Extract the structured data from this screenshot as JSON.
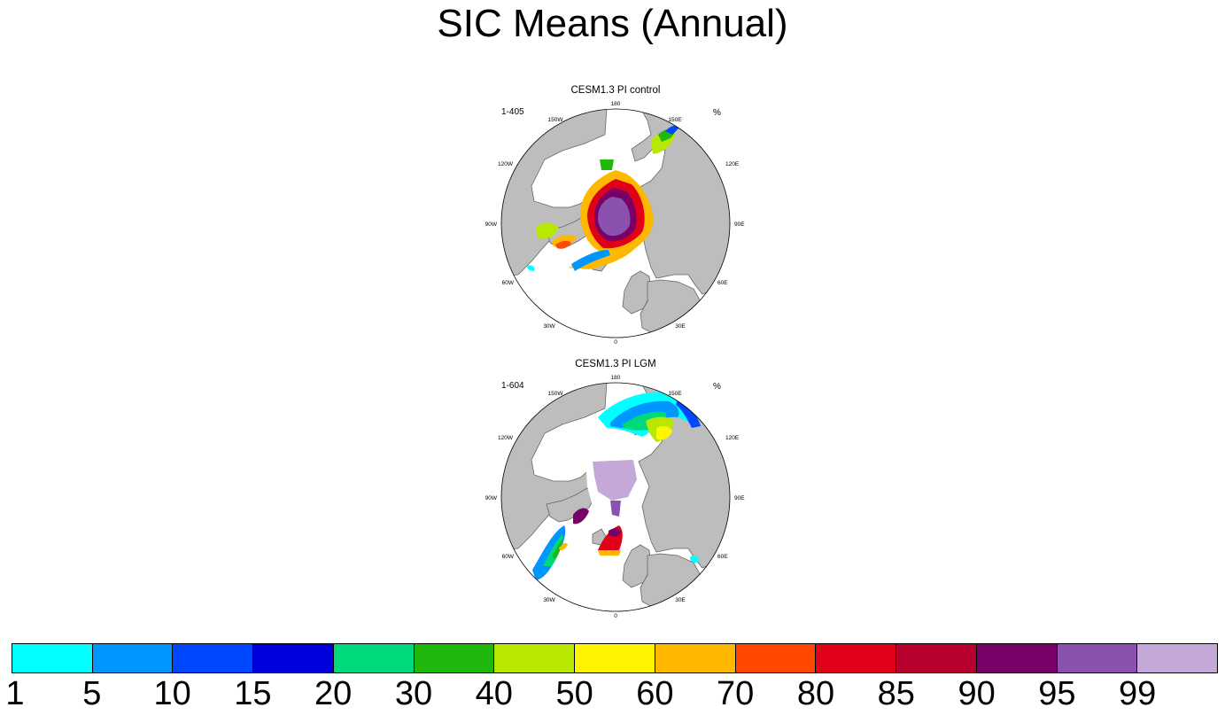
{
  "title": "SIC Means (Annual)",
  "panels": [
    {
      "title": "CESM1.3 PI control",
      "range": "1-405",
      "unit": "%",
      "lon_labels": [
        "180",
        "150E",
        "120E",
        "90E",
        "60E",
        "30E",
        "0",
        "30W",
        "60W",
        "90W",
        "120W",
        "150W"
      ]
    },
    {
      "title": "CESM1.3 PI LGM",
      "range": "1-604",
      "unit": "%",
      "lon_labels": [
        "180",
        "150E",
        "120E",
        "90E",
        "60E",
        "30E",
        "0",
        "30W",
        "60W",
        "90W",
        "120W",
        "150W"
      ]
    }
  ],
  "colorbar": {
    "colors": [
      "#00ffff",
      "#0096ff",
      "#0048ff",
      "#0000de",
      "#00d87c",
      "#20b80c",
      "#b8e800",
      "#fff500",
      "#ffb800",
      "#ff4800",
      "#e00018",
      "#b8002e",
      "#780066",
      "#8a52ae",
      "#c4a8d8"
    ],
    "labels": [
      "1",
      "5",
      "10",
      "15",
      "20",
      "30",
      "40",
      "50",
      "60",
      "70",
      "80",
      "85",
      "90",
      "95",
      "99"
    ]
  }
}
